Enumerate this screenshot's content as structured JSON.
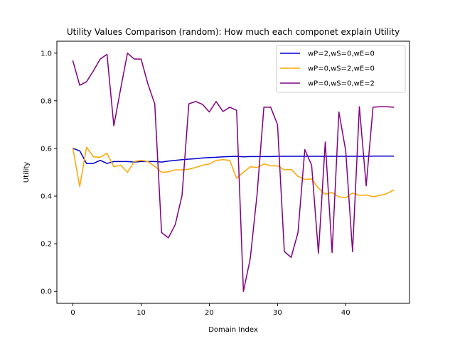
{
  "chart_data": {
    "type": "line",
    "title": "Utility Values Comparison (random): How much each componet explain Utility",
    "xlabel": "Domain Index",
    "ylabel": "Utility",
    "xlim": [
      -2.35,
      49.35
    ],
    "ylim": [
      -0.05,
      1.05
    ],
    "xticks": [
      0,
      10,
      20,
      30,
      40
    ],
    "yticks": [
      0.0,
      0.2,
      0.4,
      0.6,
      0.8,
      1.0
    ],
    "ytick_labels": [
      "0.0",
      "0.2",
      "0.4",
      "0.6",
      "0.8",
      "1.0"
    ],
    "grid": false,
    "legend_position": "top-right",
    "x": [
      0,
      1,
      2,
      3,
      4,
      5,
      6,
      7,
      8,
      9,
      10,
      11,
      12,
      13,
      14,
      15,
      16,
      17,
      18,
      19,
      20,
      21,
      22,
      23,
      24,
      25,
      26,
      27,
      28,
      29,
      30,
      31,
      32,
      33,
      34,
      35,
      36,
      37,
      38,
      39,
      40,
      41,
      42,
      43,
      44,
      45,
      46,
      47
    ],
    "series": [
      {
        "name": "wP=2,wS=0,wE=0",
        "color": "#0000cd",
        "values": [
          0.6,
          0.59,
          0.537,
          0.537,
          0.55,
          0.537,
          0.545,
          0.545,
          0.545,
          0.543,
          0.545,
          0.545,
          0.545,
          0.543,
          0.547,
          0.55,
          0.553,
          0.555,
          0.557,
          0.56,
          0.562,
          0.563,
          0.565,
          0.566,
          0.567,
          0.565,
          0.566,
          0.566,
          0.566,
          0.566,
          0.567,
          0.567,
          0.567,
          0.567,
          0.567,
          0.567,
          0.567,
          0.567,
          0.567,
          0.567,
          0.567,
          0.567,
          0.567,
          0.567,
          0.568,
          0.568,
          0.568,
          0.568
        ]
      },
      {
        "name": "wP=0,wS=2,wE=0",
        "color": "#ffa500",
        "values": [
          0.6,
          0.44,
          0.605,
          0.565,
          0.563,
          0.58,
          0.523,
          0.53,
          0.5,
          0.545,
          0.55,
          0.545,
          0.525,
          0.5,
          0.502,
          0.51,
          0.51,
          0.513,
          0.52,
          0.53,
          0.535,
          0.55,
          0.553,
          0.55,
          0.475,
          0.5,
          0.523,
          0.52,
          0.535,
          0.527,
          0.527,
          0.51,
          0.512,
          0.483,
          0.47,
          0.472,
          0.433,
          0.408,
          0.415,
          0.397,
          0.393,
          0.413,
          0.403,
          0.405,
          0.397,
          0.403,
          0.41,
          0.425
        ]
      },
      {
        "name": "wP=0,wS=0,wE=2",
        "color": "#800080",
        "values": [
          0.967,
          0.865,
          0.88,
          0.925,
          0.975,
          0.995,
          0.695,
          0.85,
          1.0,
          0.975,
          0.975,
          0.87,
          0.787,
          0.247,
          0.225,
          0.28,
          0.403,
          0.787,
          0.797,
          0.785,
          0.753,
          0.797,
          0.755,
          0.773,
          0.76,
          0.0,
          0.137,
          0.407,
          0.773,
          0.773,
          0.7,
          0.167,
          0.143,
          0.247,
          0.595,
          0.53,
          0.16,
          0.627,
          0.163,
          0.753,
          0.59,
          0.167,
          0.775,
          0.443,
          0.773,
          0.775,
          0.775,
          0.773
        ]
      }
    ]
  }
}
